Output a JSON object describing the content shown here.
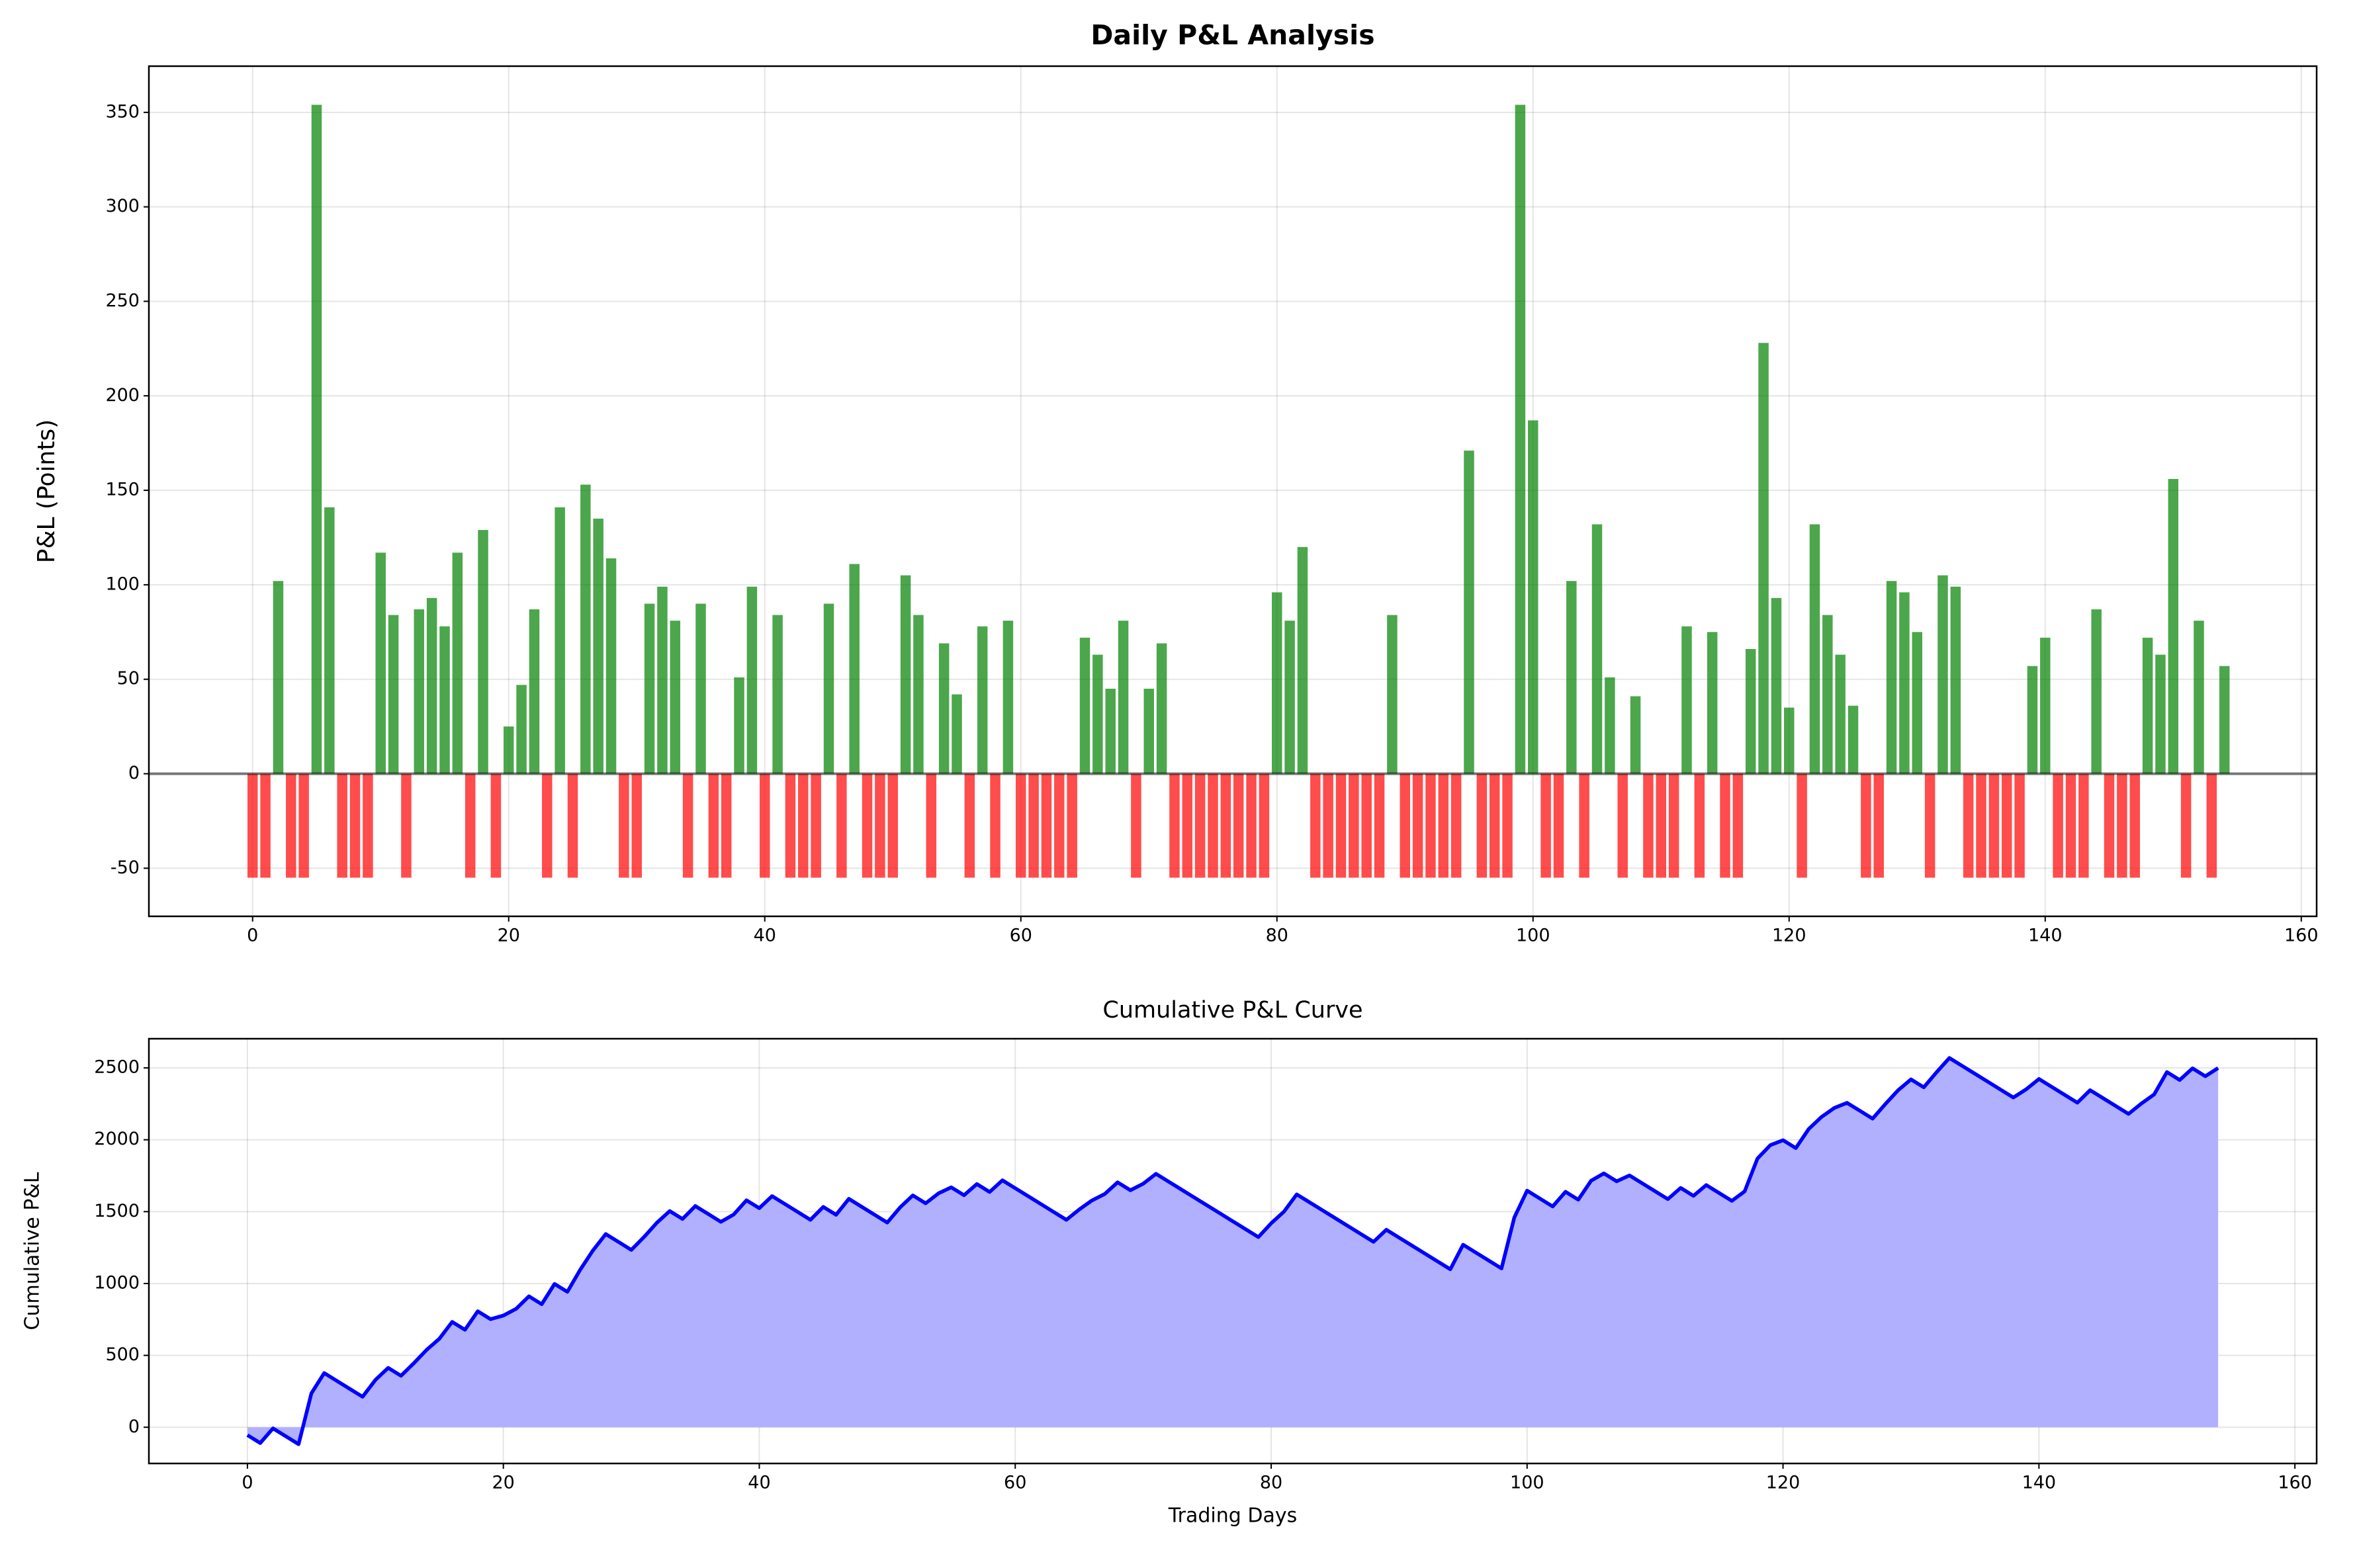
{
  "chart_data": [
    {
      "type": "bar",
      "title": "Daily P&L Analysis",
      "ylabel": "P&L (Points)",
      "positive_color": "green",
      "negative_color": "red",
      "hline": 0,
      "grid": true,
      "xlim": [
        -8.1,
        161.2
      ],
      "ylim": [
        -75.45,
        374.45
      ],
      "xticks": [
        0,
        20,
        40,
        60,
        80,
        100,
        120,
        140,
        160
      ],
      "yticks": [
        -50,
        0,
        50,
        100,
        150,
        200,
        250,
        300,
        350
      ],
      "x": [
        0,
        1,
        2,
        3,
        4,
        5,
        6,
        7,
        8,
        9,
        10,
        11,
        12,
        13,
        14,
        15,
        16,
        17,
        18,
        19,
        20,
        21,
        22,
        23,
        24,
        25,
        26,
        27,
        28,
        29,
        30,
        31,
        32,
        33,
        34,
        35,
        36,
        37,
        38,
        39,
        40,
        41,
        42,
        43,
        44,
        45,
        46,
        47,
        48,
        49,
        50,
        51,
        52,
        53,
        54,
        55,
        56,
        57,
        58,
        59,
        60,
        61,
        62,
        63,
        64,
        65,
        66,
        67,
        68,
        69,
        70,
        71,
        72,
        73,
        74,
        75,
        76,
        77,
        78,
        79,
        80,
        81,
        82,
        83,
        84,
        85,
        86,
        87,
        88,
        89,
        90,
        91,
        92,
        93,
        94,
        95,
        96,
        97,
        98,
        99,
        100,
        101,
        102,
        103,
        104,
        105,
        106,
        107,
        108,
        109,
        110,
        111,
        112,
        113,
        114,
        115,
        116,
        117,
        118,
        119,
        120,
        121,
        122,
        123,
        124,
        125,
        126,
        127,
        128,
        129,
        130,
        131,
        132,
        133,
        134,
        135,
        136,
        137,
        138,
        139,
        140,
        141,
        142,
        143,
        144,
        145,
        146,
        147,
        148,
        149,
        150,
        151,
        152,
        153,
        154
      ],
      "values": [
        -55,
        -55,
        102,
        -55,
        -55,
        354,
        141,
        -55,
        -55,
        -55,
        117,
        84,
        -55,
        87,
        93,
        78,
        117,
        -55,
        129,
        -55,
        25,
        47,
        87,
        -55,
        141,
        -55,
        153,
        135,
        114,
        -55,
        -55,
        90,
        99,
        81,
        -55,
        90,
        -55,
        -55,
        51,
        99,
        -55,
        84,
        -55,
        -55,
        -55,
        90,
        -55,
        111,
        -55,
        -55,
        -55,
        105,
        84,
        -55,
        69,
        42,
        -55,
        78,
        -55,
        81,
        -55,
        -55,
        -55,
        -55,
        -55,
        72,
        63,
        45,
        81,
        -55,
        45,
        69,
        -55,
        -55,
        -55,
        -55,
        -55,
        -55,
        -55,
        -55,
        96,
        81,
        120,
        -55,
        -55,
        -55,
        -55,
        -55,
        -55,
        84,
        -55,
        -55,
        -55,
        -55,
        -55,
        171,
        -55,
        -55,
        -55,
        354,
        187,
        -55,
        -55,
        102,
        -55,
        132,
        51,
        -55,
        41,
        -55,
        -55,
        -55,
        78,
        -55,
        75,
        -55,
        -55,
        66,
        228,
        93,
        35,
        -55,
        132,
        84,
        63,
        36,
        -55,
        -55,
        102,
        96,
        75,
        -55,
        105,
        99,
        -55,
        -55,
        -55,
        -55,
        -55,
        57,
        72,
        -55,
        -55,
        -55,
        87,
        -55,
        -55,
        -55,
        72,
        63,
        156,
        -55,
        81,
        -55,
        57
      ]
    },
    {
      "type": "area",
      "title": "Cumulative P&L Curve",
      "xlabel": "Trading Days",
      "ylabel": "Cumulative P&L",
      "color": "blue",
      "fill_color": "#b0b0ff",
      "grid": true,
      "xlim": [
        -7.7,
        161.7
      ],
      "ylim": [
        -252,
        2703
      ],
      "xticks": [
        0,
        20,
        40,
        60,
        80,
        100,
        120,
        140,
        160
      ],
      "yticks": [
        0,
        500,
        1000,
        1500,
        2000,
        2500
      ],
      "x": [
        0,
        1,
        2,
        3,
        4,
        5,
        6,
        7,
        8,
        9,
        10,
        11,
        12,
        13,
        14,
        15,
        16,
        17,
        18,
        19,
        20,
        21,
        22,
        23,
        24,
        25,
        26,
        27,
        28,
        29,
        30,
        31,
        32,
        33,
        34,
        35,
        36,
        37,
        38,
        39,
        40,
        41,
        42,
        43,
        44,
        45,
        46,
        47,
        48,
        49,
        50,
        51,
        52,
        53,
        54,
        55,
        56,
        57,
        58,
        59,
        60,
        61,
        62,
        63,
        64,
        65,
        66,
        67,
        68,
        69,
        70,
        71,
        72,
        73,
        74,
        75,
        76,
        77,
        78,
        79,
        80,
        81,
        82,
        83,
        84,
        85,
        86,
        87,
        88,
        89,
        90,
        91,
        92,
        93,
        94,
        95,
        96,
        97,
        98,
        99,
        100,
        101,
        102,
        103,
        104,
        105,
        106,
        107,
        108,
        109,
        110,
        111,
        112,
        113,
        114,
        115,
        116,
        117,
        118,
        119,
        120,
        121,
        122,
        123,
        124,
        125,
        126,
        127,
        128,
        129,
        130,
        131,
        132,
        133,
        134,
        135,
        136,
        137,
        138,
        139,
        140,
        141,
        142,
        143,
        144,
        145,
        146,
        147,
        148,
        149,
        150,
        151,
        152,
        153,
        154
      ],
      "values": [
        -55,
        -110,
        -8,
        -63,
        -118,
        236,
        377,
        322,
        267,
        212,
        329,
        413,
        358,
        445,
        538,
        616,
        733,
        678,
        807,
        752,
        777,
        824,
        911,
        856,
        997,
        942,
        1095,
        1230,
        1344,
        1289,
        1234,
        1324,
        1423,
        1504,
        1449,
        1539,
        1484,
        1429,
        1480,
        1579,
        1524,
        1608,
        1553,
        1498,
        1443,
        1533,
        1478,
        1589,
        1534,
        1479,
        1424,
        1529,
        1613,
        1558,
        1627,
        1669,
        1614,
        1692,
        1637,
        1718,
        1663,
        1608,
        1553,
        1498,
        1443,
        1515,
        1578,
        1623,
        1704,
        1649,
        1694,
        1763,
        1708,
        1653,
        1598,
        1543,
        1488,
        1433,
        1378,
        1323,
        1419,
        1500,
        1620,
        1565,
        1510,
        1455,
        1400,
        1345,
        1290,
        1374,
        1319,
        1264,
        1209,
        1154,
        1099,
        1270,
        1215,
        1160,
        1105,
        1459,
        1646,
        1591,
        1536,
        1638,
        1583,
        1715,
        1766,
        1711,
        1752,
        1697,
        1642,
        1587,
        1665,
        1610,
        1685,
        1630,
        1575,
        1641,
        1869,
        1962,
        1997,
        1942,
        2074,
        2158,
        2221,
        2257,
        2202,
        2147,
        2249,
        2345,
        2420,
        2365,
        2470,
        2569,
        2514,
        2459,
        2404,
        2349,
        2294,
        2351,
        2423,
        2368,
        2313,
        2258,
        2345,
        2290,
        2235,
        2180,
        2252,
        2315,
        2471,
        2416,
        2497,
        2442,
        2499
      ]
    }
  ]
}
